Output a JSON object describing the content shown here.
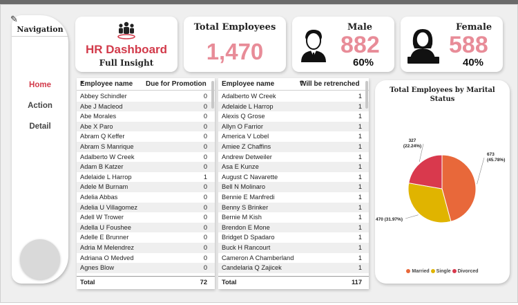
{
  "navigation": {
    "title": "Navigation",
    "items": [
      {
        "label": "Home",
        "active": true
      },
      {
        "label": "Action",
        "active": false
      },
      {
        "label": "Detail",
        "active": false
      }
    ]
  },
  "brand": {
    "title": "HR Dashboard",
    "subtitle": "Full Insight",
    "icon": "people-group-icon",
    "accent": "#d23a4a"
  },
  "kpis": {
    "total": {
      "label": "Total Employees",
      "value": "1,470"
    },
    "male": {
      "label": "Male",
      "value": "882",
      "percent": "60%",
      "icon": "male-avatar-icon"
    },
    "female": {
      "label": "Female",
      "value": "588",
      "percent": "40%",
      "icon": "female-avatar-icon"
    },
    "value_color": "#e88c98"
  },
  "promotion_table": {
    "columns": [
      "Employee name",
      "Due for Promotion"
    ],
    "rows": [
      [
        "Abbey Schindler",
        "0"
      ],
      [
        "Abe J Macleod",
        "0"
      ],
      [
        "Abe Morales",
        "0"
      ],
      [
        "Abe X Paro",
        "0"
      ],
      [
        "Abram Q Keffer",
        "0"
      ],
      [
        "Abram S Manrique",
        "0"
      ],
      [
        "Adalberto W Creek",
        "0"
      ],
      [
        "Adam B Katzer",
        "0"
      ],
      [
        "Adelaide L Harrop",
        "1"
      ],
      [
        "Adele M Burnam",
        "0"
      ],
      [
        "Adelia Abbas",
        "0"
      ],
      [
        "Adelia U Villagomez",
        "0"
      ],
      [
        "Adell W Trower",
        "0"
      ],
      [
        "Adella U Foushee",
        "0"
      ],
      [
        "Adelle E Brunner",
        "0"
      ],
      [
        "Adria M Melendrez",
        "0"
      ],
      [
        "Adriana O Medved",
        "0"
      ],
      [
        "Agnes Blow",
        "0"
      ]
    ],
    "total_label": "Total",
    "total_value": "72"
  },
  "retrench_table": {
    "columns": [
      "Employee name",
      "Will be retrenched"
    ],
    "rows": [
      [
        "Adalberto W Creek",
        "1"
      ],
      [
        "Adelaide L Harrop",
        "1"
      ],
      [
        "Alexis Q Grose",
        "1"
      ],
      [
        "Allyn O Farrior",
        "1"
      ],
      [
        "America V Lobel",
        "1"
      ],
      [
        "Amiee Z Chaffins",
        "1"
      ],
      [
        "Andrew Detweiler",
        "1"
      ],
      [
        "Asa E Kunze",
        "1"
      ],
      [
        "August C Navarette",
        "1"
      ],
      [
        "Bell N Molinaro",
        "1"
      ],
      [
        "Bennie E Manfredi",
        "1"
      ],
      [
        "Benny S Brinker",
        "1"
      ],
      [
        "Bernie M Kish",
        "1"
      ],
      [
        "Brendon E Mone",
        "1"
      ],
      [
        "Bridget D Spadaro",
        "1"
      ],
      [
        "Buck H Rancourt",
        "1"
      ],
      [
        "Cameron A Chamberland",
        "1"
      ],
      [
        "Candelaria Q Zajicek",
        "1"
      ]
    ],
    "total_label": "Total",
    "total_value": "117"
  },
  "chart_data": {
    "type": "pie",
    "title": "Total Employees by Marital Status",
    "categories": [
      "Married",
      "Single",
      "Divorced"
    ],
    "values": [
      673,
      470,
      327
    ],
    "labels": [
      "673 (45.78%)",
      "470 (31.97%)",
      "327 (22.24%)"
    ],
    "colors": [
      "#e8683a",
      "#e0b400",
      "#d9394d"
    ],
    "legend_position": "bottom"
  }
}
